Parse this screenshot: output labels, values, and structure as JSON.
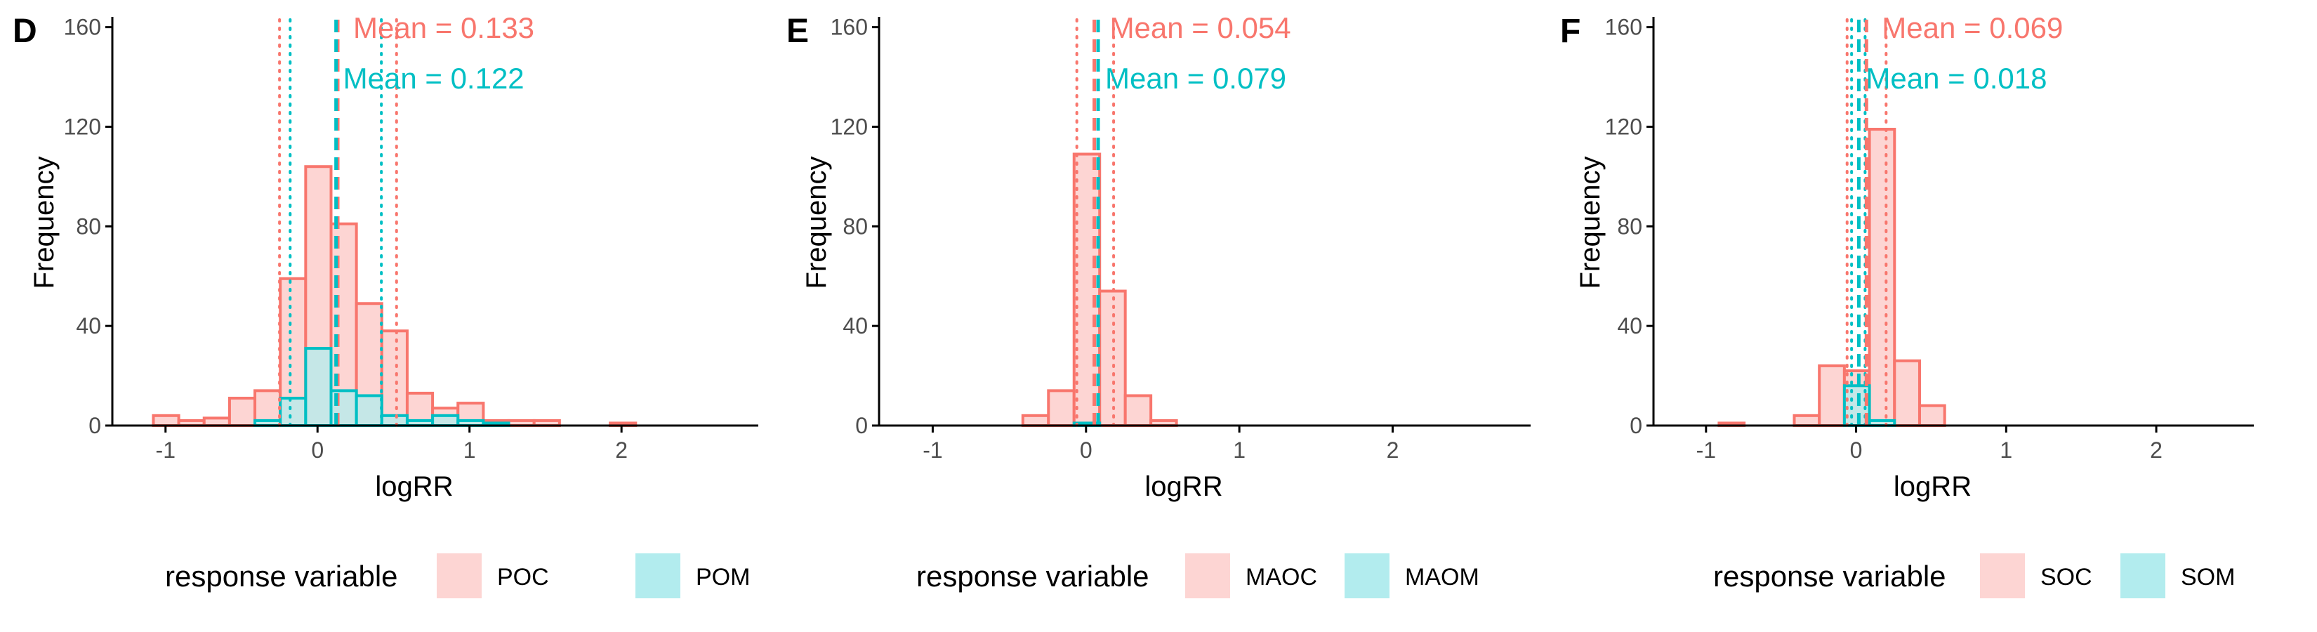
{
  "colors": {
    "red": "#F8766D",
    "teal": "#00BFC4",
    "red_fill": "#FDD5D3",
    "teal_fill": "#B2ECEE",
    "axis": "#000000",
    "tick_label": "#4D4D4D"
  },
  "chart_data": [
    {
      "type": "bar",
      "panel_label": "D",
      "xlabel": "logRR",
      "ylabel": "Frequency",
      "x_ticks": [
        -1,
        0,
        1,
        2
      ],
      "y_ticks": [
        0,
        40,
        80,
        120,
        160
      ],
      "xlim": [
        -1.35,
        2.9
      ],
      "ylim": [
        0,
        163
      ],
      "legend_title": "response variable",
      "legend_position": "bottom",
      "bin_width": 0.167,
      "series": [
        {
          "name": "POC",
          "color": "red",
          "bin_starts": [
            -1.08,
            -0.913,
            -0.746,
            -0.579,
            -0.412,
            -0.245,
            -0.078,
            0.089,
            0.256,
            0.423,
            0.59,
            0.757,
            0.924,
            1.091,
            1.258,
            1.425,
            1.592,
            1.759,
            1.926
          ],
          "values": [
            4,
            2,
            3,
            11,
            14,
            59,
            104,
            81,
            49,
            38,
            13,
            7,
            9,
            2,
            2,
            2,
            0,
            0,
            1
          ],
          "mean": 0.133,
          "mean_label": "Mean =  0.133",
          "ci": [
            -0.25,
            0.52
          ]
        },
        {
          "name": "POM",
          "color": "teal",
          "bin_starts": [
            -0.412,
            -0.245,
            -0.078,
            0.089,
            0.256,
            0.423,
            0.59,
            0.757,
            0.924,
            1.091
          ],
          "values": [
            2,
            11,
            31,
            14,
            12,
            4,
            2,
            4,
            2,
            1
          ],
          "mean": 0.122,
          "mean_label": "Mean =  0.122",
          "ci": [
            -0.18,
            0.42
          ]
        }
      ]
    },
    {
      "type": "bar",
      "panel_label": "E",
      "xlabel": "logRR",
      "ylabel": "Frequency",
      "x_ticks": [
        -1,
        0,
        1,
        2
      ],
      "y_ticks": [
        0,
        40,
        80,
        120,
        160
      ],
      "xlim": [
        -1.35,
        2.9
      ],
      "ylim": [
        0,
        163
      ],
      "legend_title": "response variable",
      "legend_position": "bottom",
      "bin_width": 0.167,
      "series": [
        {
          "name": "MAOC",
          "color": "red",
          "bin_starts": [
            -0.412,
            -0.245,
            -0.078,
            0.089,
            0.256,
            0.423
          ],
          "values": [
            4,
            14,
            109,
            54,
            12,
            2
          ],
          "mean": 0.054,
          "mean_label": "Mean =  0.054",
          "ci": [
            -0.06,
            0.18
          ]
        },
        {
          "name": "MAOM",
          "color": "teal",
          "bin_starts": [
            -0.078
          ],
          "values": [
            1
          ],
          "mean": 0.079,
          "mean_label": "Mean =  0.079",
          "ci": []
        }
      ]
    },
    {
      "type": "bar",
      "panel_label": "F",
      "xlabel": "logRR",
      "ylabel": "Frequency",
      "x_ticks": [
        -1,
        0,
        1,
        2
      ],
      "y_ticks": [
        0,
        40,
        80,
        120,
        160
      ],
      "xlim": [
        -1.35,
        2.65
      ],
      "ylim": [
        0,
        163
      ],
      "legend_title": "response variable",
      "legend_position": "bottom",
      "bin_width": 0.167,
      "series": [
        {
          "name": "SOC",
          "color": "red",
          "bin_starts": [
            -0.913,
            -0.412,
            -0.245,
            -0.078,
            0.089,
            0.256,
            0.423
          ],
          "values": [
            1,
            4,
            24,
            22,
            119,
            26,
            8
          ],
          "mean": 0.069,
          "mean_label": "Mean =  0.069",
          "ci": [
            -0.06,
            0.2
          ]
        },
        {
          "name": "SOM",
          "color": "teal",
          "bin_starts": [
            -0.078,
            0.089
          ],
          "values": [
            16,
            2
          ],
          "mean": 0.018,
          "mean_label": "Mean =  0.018",
          "ci": [
            -0.03,
            0.06
          ]
        }
      ]
    }
  ]
}
